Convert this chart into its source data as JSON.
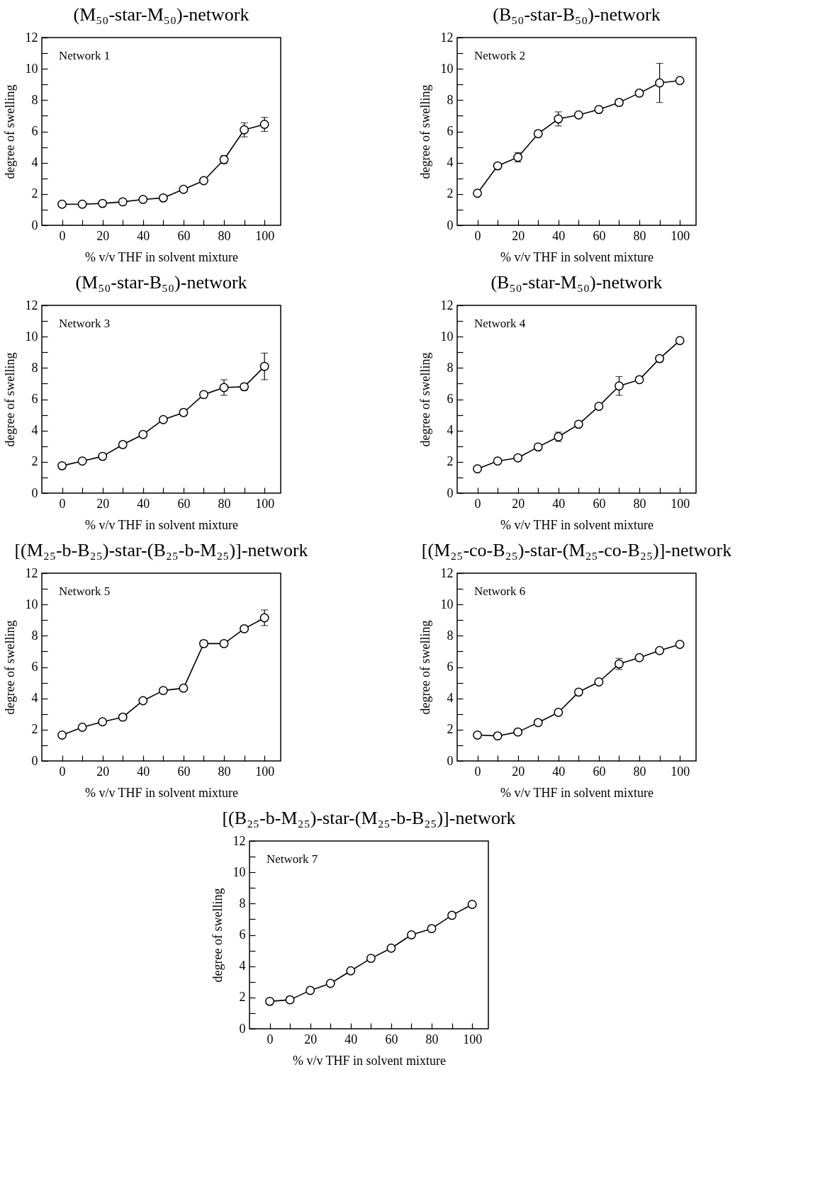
{
  "chart_data": [
    {
      "type": "line",
      "title": "(M₅₀-star-M₅₀)-network",
      "xlabel": "% v/v THF in solvent mixture",
      "ylabel": "degree of swelling",
      "annotations": [
        "Network 1"
      ],
      "color": "#000000",
      "marker": "circle",
      "x": [
        0,
        10,
        20,
        30,
        40,
        50,
        60,
        70,
        80,
        90,
        100
      ],
      "values": [
        1.35,
        1.35,
        1.4,
        1.5,
        1.65,
        1.75,
        2.3,
        2.85,
        4.2,
        6.1,
        6.45
      ],
      "errors": [
        null,
        null,
        null,
        null,
        null,
        null,
        null,
        null,
        0.25,
        0.45,
        0.45
      ],
      "xlim": [
        -10,
        108
      ],
      "ylim": [
        0,
        12
      ],
      "xticks": [
        0,
        {
          "value": 10,
          "label": null
        },
        20,
        {
          "value": 30,
          "label": null
        },
        40,
        {
          "value": 50,
          "label": null
        },
        60,
        {
          "value": 70,
          "label": null
        },
        80,
        {
          "value": 90,
          "label": null
        },
        100
      ],
      "yticks": [
        0,
        {
          "value": 1,
          "label": null
        },
        2,
        {
          "value": 3,
          "label": null
        },
        4,
        {
          "value": 5,
          "label": null
        },
        6,
        {
          "value": 7,
          "label": null
        },
        8,
        {
          "value": 9,
          "label": null
        },
        10,
        {
          "value": 11,
          "label": null
        },
        12
      ]
    },
    {
      "type": "line",
      "title": "(B₅₀-star-B₅₀)-network",
      "xlabel": "% v/v THF in solvent mixture",
      "ylabel": "degree of swelling",
      "annotations": [
        "Network 2"
      ],
      "color": "#000000",
      "marker": "circle",
      "x": [
        0,
        10,
        20,
        30,
        40,
        50,
        60,
        70,
        80,
        90,
        100
      ],
      "values": [
        2.05,
        3.8,
        4.35,
        5.85,
        6.8,
        7.05,
        7.4,
        7.85,
        8.45,
        9.1,
        9.25
      ],
      "errors": [
        0.15,
        0.15,
        0.3,
        0.2,
        0.45,
        null,
        null,
        0.2,
        null,
        1.25,
        null
      ],
      "xlim": [
        -10,
        108
      ],
      "ylim": [
        0,
        12
      ],
      "xticks": [
        0,
        {
          "value": 10,
          "label": null
        },
        20,
        {
          "value": 30,
          "label": null
        },
        40,
        {
          "value": 50,
          "label": null
        },
        60,
        {
          "value": 70,
          "label": null
        },
        80,
        {
          "value": 90,
          "label": null
        },
        100
      ],
      "yticks": [
        0,
        {
          "value": 1,
          "label": null
        },
        2,
        {
          "value": 3,
          "label": null
        },
        4,
        {
          "value": 5,
          "label": null
        },
        6,
        {
          "value": 7,
          "label": null
        },
        8,
        {
          "value": 9,
          "label": null
        },
        10,
        {
          "value": 11,
          "label": null
        },
        12
      ]
    },
    {
      "type": "line",
      "title": "(M₅₀-star-B₅₀)-network",
      "xlabel": "% v/v THF in solvent mixture",
      "ylabel": "degree of swelling",
      "annotations": [
        "Network 3"
      ],
      "color": "#000000",
      "marker": "circle",
      "x": [
        0,
        10,
        20,
        30,
        40,
        50,
        60,
        70,
        80,
        90,
        100
      ],
      "values": [
        1.75,
        2.05,
        2.35,
        3.1,
        3.75,
        4.7,
        5.15,
        6.3,
        6.75,
        6.8,
        8.1
      ],
      "errors": [
        null,
        null,
        null,
        0.2,
        null,
        null,
        0.2,
        null,
        0.5,
        0.2,
        0.85
      ],
      "xlim": [
        -10,
        108
      ],
      "ylim": [
        0,
        12
      ],
      "xticks": [
        0,
        {
          "value": 10,
          "label": null
        },
        20,
        {
          "value": 30,
          "label": null
        },
        40,
        {
          "value": 50,
          "label": null
        },
        60,
        {
          "value": 70,
          "label": null
        },
        80,
        {
          "value": 90,
          "label": null
        },
        100
      ],
      "yticks": [
        0,
        {
          "value": 1,
          "label": null
        },
        2,
        {
          "value": 3,
          "label": null
        },
        4,
        {
          "value": 5,
          "label": null
        },
        6,
        {
          "value": 7,
          "label": null
        },
        8,
        {
          "value": 9,
          "label": null
        },
        10,
        {
          "value": 11,
          "label": null
        },
        12
      ]
    },
    {
      "type": "line",
      "title": "(B₅₀-star-M₅₀)-network",
      "xlabel": "% v/v THF in solvent mixture",
      "ylabel": "degree of swelling",
      "annotations": [
        "Network 4"
      ],
      "color": "#000000",
      "marker": "circle",
      "x": [
        0,
        10,
        20,
        30,
        40,
        50,
        60,
        70,
        80,
        90,
        100
      ],
      "values": [
        1.55,
        2.05,
        2.25,
        2.95,
        3.6,
        4.4,
        5.55,
        6.85,
        7.25,
        8.6,
        9.75
      ],
      "errors": [
        null,
        null,
        0.15,
        null,
        0.3,
        null,
        null,
        0.6,
        null,
        null,
        null
      ],
      "xlim": [
        -10,
        108
      ],
      "ylim": [
        0,
        12
      ],
      "xticks": [
        0,
        {
          "value": 10,
          "label": null
        },
        20,
        {
          "value": 30,
          "label": null
        },
        40,
        {
          "value": 50,
          "label": null
        },
        60,
        {
          "value": 70,
          "label": null
        },
        80,
        {
          "value": 90,
          "label": null
        },
        100
      ],
      "yticks": [
        0,
        {
          "value": 1,
          "label": null
        },
        2,
        {
          "value": 3,
          "label": null
        },
        4,
        {
          "value": 5,
          "label": null
        },
        6,
        {
          "value": 7,
          "label": null
        },
        8,
        {
          "value": 9,
          "label": null
        },
        10,
        {
          "value": 11,
          "label": null
        },
        12
      ]
    },
    {
      "type": "line",
      "title": "[(M₂₅-b-B₂₅)-star-(B₂₅-b-M₂₅)]-network",
      "xlabel": "% v/v THF in solvent mixture",
      "ylabel": "degree of swelling",
      "annotations": [
        "Network 5"
      ],
      "color": "#000000",
      "marker": "circle",
      "x": [
        0,
        10,
        20,
        30,
        40,
        50,
        60,
        70,
        80,
        90,
        100
      ],
      "values": [
        1.65,
        2.15,
        2.5,
        2.8,
        3.85,
        4.5,
        4.65,
        7.5,
        7.5,
        8.45,
        9.15
      ],
      "errors": [
        null,
        null,
        null,
        null,
        null,
        null,
        null,
        0.2,
        null,
        0.15,
        0.5
      ],
      "xlim": [
        -10,
        108
      ],
      "ylim": [
        0,
        12
      ],
      "xticks": [
        0,
        {
          "value": 10,
          "label": null
        },
        20,
        {
          "value": 30,
          "label": null
        },
        40,
        {
          "value": 50,
          "label": null
        },
        60,
        {
          "value": 70,
          "label": null
        },
        80,
        {
          "value": 90,
          "label": null
        },
        100
      ],
      "yticks": [
        0,
        {
          "value": 1,
          "label": null
        },
        2,
        {
          "value": 3,
          "label": null
        },
        4,
        {
          "value": 5,
          "label": null
        },
        6,
        {
          "value": 7,
          "label": null
        },
        8,
        {
          "value": 9,
          "label": null
        },
        10,
        {
          "value": 11,
          "label": null
        },
        12
      ]
    },
    {
      "type": "line",
      "title": "[(M₂₅-co-B₂₅)-star-(M₂₅-co-B₂₅)]-network",
      "xlabel": "% v/v THF in solvent mixture",
      "ylabel": "degree of swelling",
      "annotations": [
        "Network 6"
      ],
      "color": "#000000",
      "marker": "circle",
      "x": [
        0,
        10,
        20,
        30,
        40,
        50,
        60,
        70,
        80,
        90,
        100
      ],
      "values": [
        1.65,
        1.6,
        1.85,
        2.45,
        3.1,
        4.4,
        5.05,
        6.2,
        6.6,
        7.05,
        7.45
      ],
      "errors": [
        null,
        null,
        null,
        null,
        null,
        null,
        null,
        0.35,
        null,
        null,
        null
      ],
      "xlim": [
        -10,
        108
      ],
      "ylim": [
        0,
        12
      ],
      "xticks": [
        0,
        {
          "value": 10,
          "label": null
        },
        20,
        {
          "value": 30,
          "label": null
        },
        40,
        {
          "value": 50,
          "label": null
        },
        60,
        {
          "value": 70,
          "label": null
        },
        80,
        {
          "value": 90,
          "label": null
        },
        100
      ],
      "yticks": [
        0,
        {
          "value": 1,
          "label": null
        },
        2,
        {
          "value": 3,
          "label": null
        },
        4,
        {
          "value": 5,
          "label": null
        },
        6,
        {
          "value": 7,
          "label": null
        },
        8,
        {
          "value": 9,
          "label": null
        },
        10,
        {
          "value": 11,
          "label": null
        },
        12
      ]
    },
    {
      "type": "line",
      "title": "[(B₂₅-b-M₂₅)-star-(M₂₅-b-B₂₅)]-network",
      "xlabel": "% v/v THF in solvent mixture",
      "ylabel": "degree of swelling",
      "annotations": [
        "Network 7"
      ],
      "color": "#000000",
      "marker": "circle",
      "x": [
        0,
        10,
        20,
        30,
        40,
        50,
        60,
        70,
        80,
        90,
        100
      ],
      "values": [
        1.75,
        1.85,
        2.45,
        2.9,
        3.7,
        4.5,
        5.15,
        6.0,
        6.4,
        7.25,
        7.95
      ],
      "errors": [
        null,
        null,
        null,
        null,
        null,
        null,
        null,
        null,
        null,
        null,
        null
      ],
      "xlim": [
        -10,
        108
      ],
      "ylim": [
        0,
        12
      ],
      "xticks": [
        0,
        {
          "value": 10,
          "label": null
        },
        20,
        {
          "value": 30,
          "label": null
        },
        40,
        {
          "value": 50,
          "label": null
        },
        60,
        {
          "value": 70,
          "label": null
        },
        80,
        {
          "value": 90,
          "label": null
        },
        100
      ],
      "yticks": [
        0,
        {
          "value": 1,
          "label": null
        },
        2,
        {
          "value": 3,
          "label": null
        },
        4,
        {
          "value": 5,
          "label": null
        },
        6,
        {
          "value": 7,
          "label": null
        },
        8,
        {
          "value": 9,
          "label": null
        },
        10,
        {
          "value": 11,
          "label": null
        },
        12
      ]
    }
  ]
}
